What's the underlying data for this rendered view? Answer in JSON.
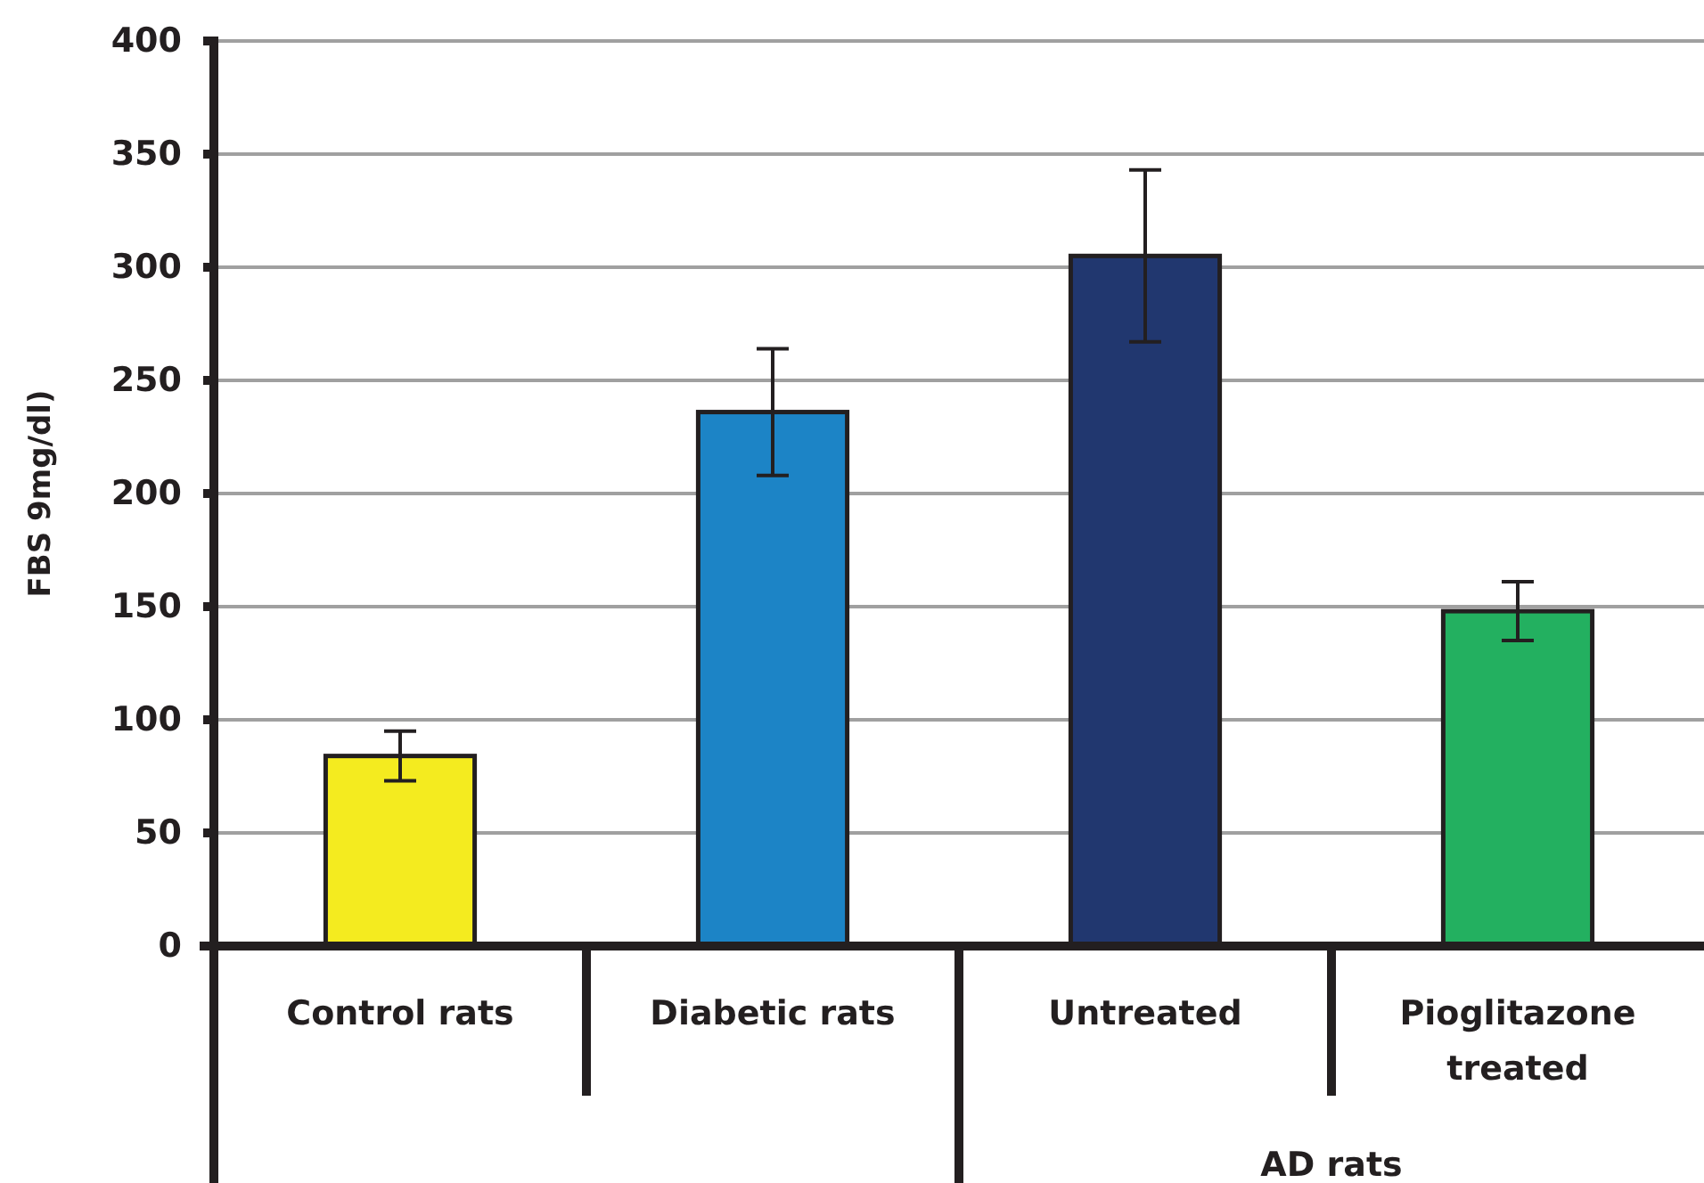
{
  "chart_data": {
    "type": "bar",
    "ylabel": "FBS 9mg/dl)",
    "categories": [
      "Control rats",
      "Diabetic rats",
      "Untreated",
      "Pioglitazone treated"
    ],
    "values": [
      84,
      236,
      305,
      148
    ],
    "errors": [
      11,
      28,
      38,
      13
    ],
    "colors": [
      "#f4eb1f",
      "#1c84c6",
      "#21376f",
      "#23b060"
    ],
    "ylim": [
      0,
      400
    ],
    "yticks": [
      0,
      50,
      100,
      150,
      200,
      250,
      300,
      350,
      400
    ],
    "grid": "y",
    "annotations": [
      "AD rats"
    ]
  }
}
